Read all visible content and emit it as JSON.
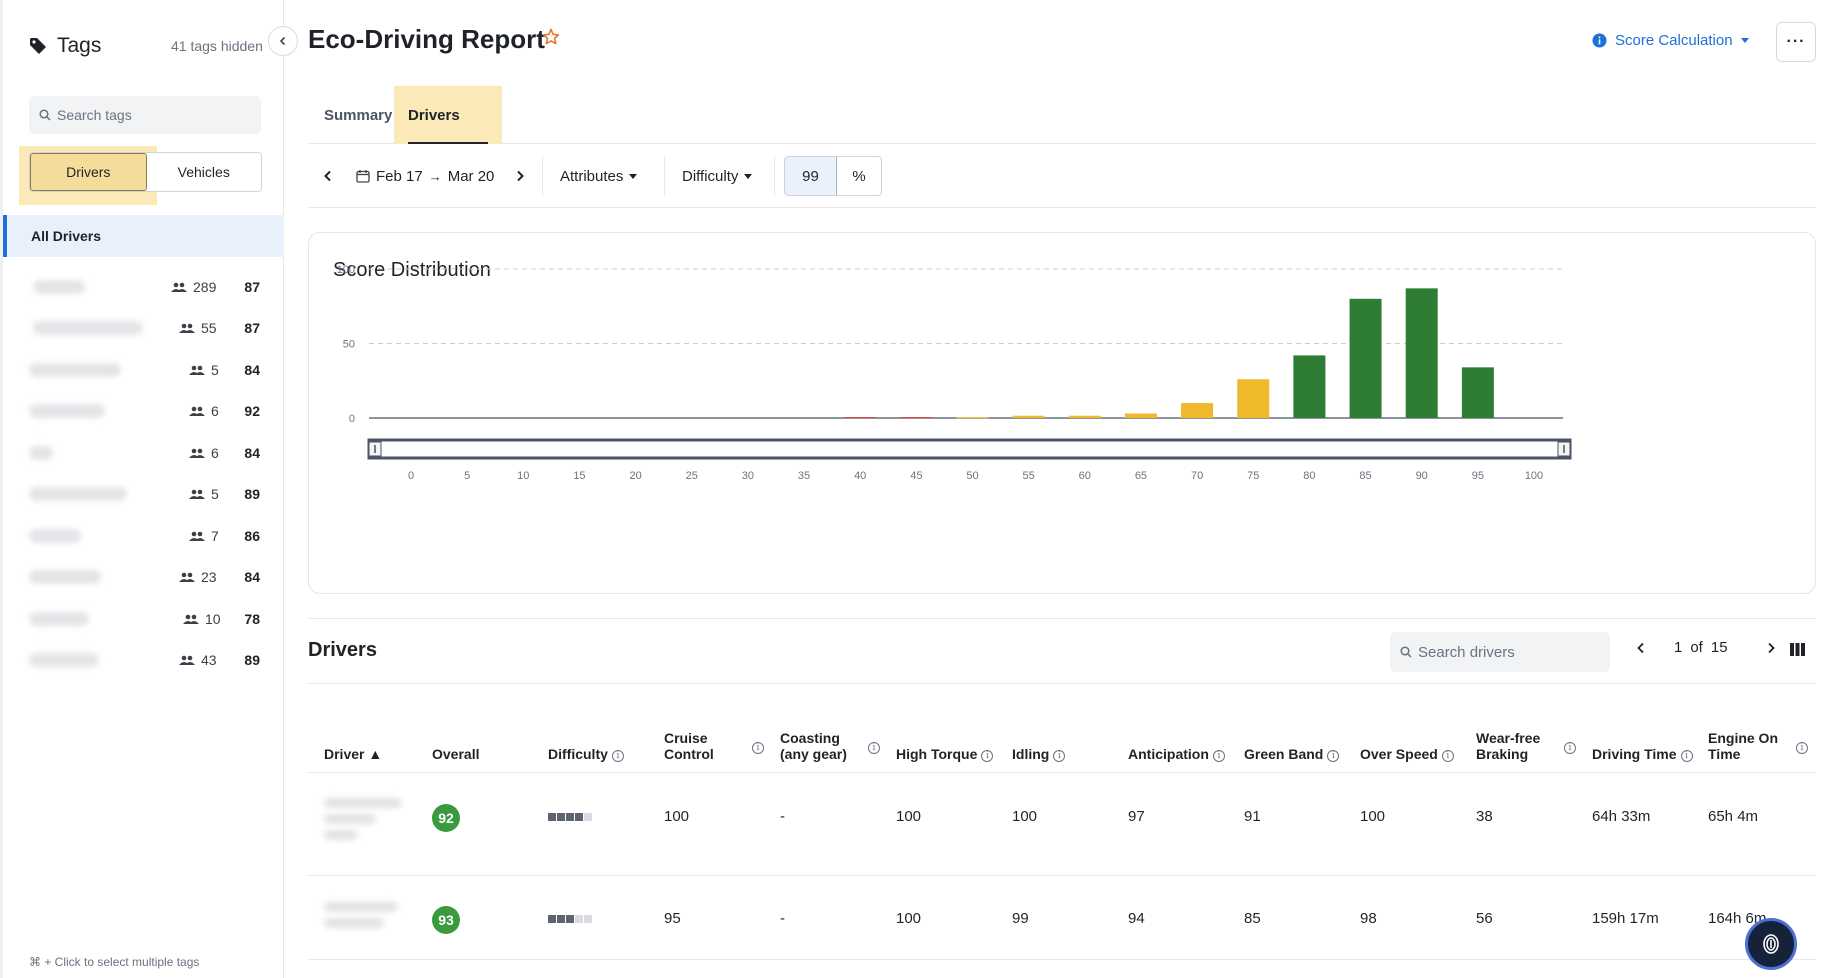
{
  "sidebar": {
    "title": "Tags",
    "hidden_count": "41 tags hidden",
    "search_placeholder": "Search tags",
    "segments": [
      "Drivers",
      "Vehicles"
    ],
    "all_label": "All Drivers",
    "tags": [
      {
        "count": "289",
        "score": "87"
      },
      {
        "count": "55",
        "score": "87"
      },
      {
        "count": "5",
        "score": "84"
      },
      {
        "count": "6",
        "score": "92"
      },
      {
        "count": "6",
        "score": "84"
      },
      {
        "count": "5",
        "score": "89"
      },
      {
        "count": "7",
        "score": "86"
      },
      {
        "count": "23",
        "score": "84"
      },
      {
        "count": "10",
        "score": "78"
      },
      {
        "count": "43",
        "score": "89"
      }
    ],
    "hint": "⌘ + Click to select multiple tags"
  },
  "header": {
    "title": "Eco-Driving Report",
    "score_calc": "Score Calculation",
    "more": "···"
  },
  "tabs": [
    "Summary",
    "Drivers"
  ],
  "toolbar": {
    "date_from": "Feb 17",
    "arrow": "→",
    "date_to": "Mar 20",
    "attributes": "Attributes",
    "difficulty": "Difficulty",
    "percent_value": "99",
    "percent_unit": "%"
  },
  "chart_data": {
    "type": "bar",
    "title": "Score Distribution",
    "x": [
      40,
      45,
      50,
      55,
      60,
      65,
      70,
      75,
      80,
      85,
      90,
      95
    ],
    "values": [
      0.5,
      0.5,
      0.5,
      1.5,
      1.5,
      3,
      10,
      26,
      42,
      80,
      87,
      34
    ],
    "colors": [
      "#c62828",
      "#c62828",
      "#f0b92b",
      "#f0b92b",
      "#f0b92b",
      "#f0b92b",
      "#f0b92b",
      "#f0b92b",
      "#2e7d32",
      "#2e7d32",
      "#2e7d32",
      "#2e7d32"
    ],
    "xticks": [
      0,
      5,
      10,
      15,
      20,
      25,
      30,
      35,
      40,
      45,
      50,
      55,
      60,
      65,
      70,
      75,
      80,
      85,
      90,
      95,
      100
    ],
    "yticks": [
      0,
      50,
      100
    ],
    "xlim": [
      0,
      100
    ],
    "ylim": [
      0,
      100
    ],
    "grid": "dashed horizontal"
  },
  "drivers": {
    "title": "Drivers",
    "search_placeholder": "Search drivers",
    "page": "1",
    "of": "of",
    "pages": "15",
    "columns": [
      "Driver ▲",
      "Overall",
      "Difficulty",
      "Cruise Control",
      "Coasting (any gear)",
      "High Torque",
      "Idling",
      "Anticipation",
      "Green Band",
      "Over Speed",
      "Wear-free Braking",
      "Driving Time",
      "Engine On Time"
    ],
    "rows": [
      {
        "overall": "92",
        "difficulty": 4,
        "cruise": "100",
        "coasting": "-",
        "torque": "100",
        "idling": "100",
        "anticipation": "97",
        "green": "91",
        "overspeed": "100",
        "braking": "38",
        "driving": "64h 33m",
        "engine": "65h 4m"
      },
      {
        "overall": "93",
        "difficulty": 3,
        "cruise": "95",
        "coasting": "-",
        "torque": "100",
        "idling": "99",
        "anticipation": "94",
        "green": "85",
        "overspeed": "98",
        "braking": "56",
        "driving": "159h 17m",
        "engine": "164h 6m"
      }
    ]
  }
}
